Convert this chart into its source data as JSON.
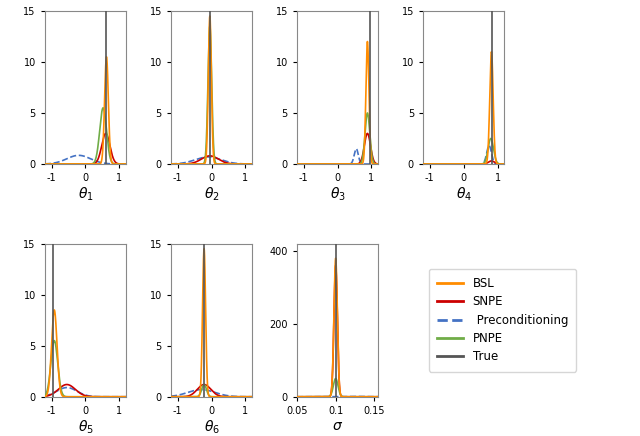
{
  "subplots": [
    {
      "label": "$\\theta_1$",
      "true": 0.6,
      "xlim": [
        -1.2,
        1.2
      ],
      "bsl_mean": 0.62,
      "bsl_std": 0.055,
      "bsl_peak": 10.5,
      "snpe_mean": 0.6,
      "snpe_std": 0.12,
      "snpe_peak": 3.0,
      "pre_mean": -0.2,
      "pre_std": 0.35,
      "pre_peak": 0.85,
      "pnpe_mean": 0.52,
      "pnpe_std": 0.1,
      "pnpe_peak": 5.5,
      "ylim": [
        0,
        15
      ]
    },
    {
      "label": "$\\theta_2$",
      "true": -0.05,
      "xlim": [
        -1.2,
        1.2
      ],
      "bsl_mean": -0.05,
      "bsl_std": 0.045,
      "bsl_peak": 14.5,
      "snpe_mean": -0.05,
      "snpe_std": 0.25,
      "snpe_peak": 0.8,
      "pre_mean": -0.1,
      "pre_std": 0.38,
      "pre_peak": 0.7,
      "pnpe_mean": -0.05,
      "pnpe_std": 0.055,
      "pnpe_peak": 13.5,
      "ylim": [
        0,
        15
      ]
    },
    {
      "label": "$\\theta_3$",
      "true": 0.95,
      "xlim": [
        -1.2,
        1.2
      ],
      "bsl_mean": 0.88,
      "bsl_std": 0.045,
      "bsl_peak": 12.0,
      "snpe_mean": 0.88,
      "snpe_std": 0.09,
      "snpe_peak": 3.0,
      "pre_mean": 0.55,
      "pre_std": 0.06,
      "pre_peak": 1.5,
      "pnpe_mean": 0.88,
      "pnpe_std": 0.07,
      "pnpe_peak": 5.0,
      "ylim": [
        0,
        15
      ]
    },
    {
      "label": "$\\theta_4$",
      "true": 0.85,
      "xlim": [
        -1.2,
        1.2
      ],
      "bsl_mean": 0.82,
      "bsl_std": 0.05,
      "bsl_peak": 11.0,
      "snpe_mean": 0.82,
      "snpe_std": 0.09,
      "snpe_peak": 0.3,
      "pre_mean": 0.75,
      "pre_std": 0.07,
      "pre_peak": 1.8,
      "pnpe_mean": 0.8,
      "pnpe_std": 0.08,
      "pnpe_peak": 2.5,
      "ylim": [
        0,
        15
      ]
    },
    {
      "label": "$\\theta_5$",
      "true": -0.95,
      "xlim": [
        -1.2,
        1.2
      ],
      "bsl_mean": -0.92,
      "bsl_std": 0.08,
      "bsl_peak": 8.5,
      "snpe_mean": -0.55,
      "snpe_std": 0.25,
      "snpe_peak": 1.2,
      "pre_mean": -0.55,
      "pre_std": 0.3,
      "pre_peak": 0.9,
      "pnpe_mean": -0.92,
      "pnpe_std": 0.1,
      "pnpe_peak": 5.5,
      "ylim": [
        0,
        15
      ]
    },
    {
      "label": "$\\theta_6$",
      "true": -0.22,
      "xlim": [
        -1.2,
        1.2
      ],
      "bsl_mean": -0.22,
      "bsl_std": 0.045,
      "bsl_peak": 14.5,
      "snpe_mean": -0.22,
      "snpe_std": 0.2,
      "snpe_peak": 1.2,
      "pre_mean": -0.3,
      "pre_std": 0.4,
      "pre_peak": 0.7,
      "pnpe_mean": -0.22,
      "pnpe_std": 0.07,
      "pnpe_peak": 1.2,
      "ylim": [
        0,
        15
      ]
    },
    {
      "label": "$\\sigma$",
      "true": 0.1,
      "xlim": [
        0.05,
        0.155
      ],
      "bsl_mean": 0.1,
      "bsl_std": 0.0022,
      "bsl_peak": 380.0,
      "snpe_mean": 0.1,
      "snpe_std": 0.0022,
      "snpe_peak": 360.0,
      "pre_mean": 0.125,
      "pre_std": 0.01,
      "pre_peak": 0.8,
      "pnpe_mean": 0.1,
      "pnpe_std": 0.003,
      "pnpe_peak": 50.0,
      "ylim": [
        0,
        420
      ]
    }
  ],
  "colors": {
    "bsl": "#FF8C00",
    "snpe": "#CC0000",
    "pre": "#4472C4",
    "pnpe": "#70AD47",
    "true": "#555555"
  },
  "legend_labels": [
    "BSL",
    "SNPE",
    "Preconditioning",
    "PNPE",
    "True"
  ]
}
